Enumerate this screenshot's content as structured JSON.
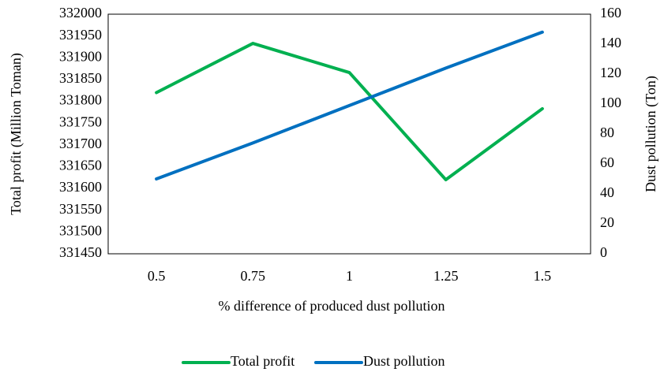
{
  "chart_data": {
    "type": "line",
    "x_label": "% difference of produced dust pollution",
    "y_label": "Total profit (Million Toman)",
    "y2_label": "Dust pollution (Ton)",
    "categories": [
      "0.5",
      "0.75",
      "1",
      "1.25",
      "1.5"
    ],
    "series": [
      {
        "name": "Total profit",
        "color": "#00b050",
        "values": [
          331820,
          331933,
          331866,
          331620,
          331783
        ]
      },
      {
        "name": "Dust pollution",
        "color": "#0070c0",
        "axis": "y2",
        "values": [
          50,
          74,
          99,
          124,
          148
        ]
      }
    ],
    "ylim": [
      331450,
      332000
    ],
    "yticks": [
      331450,
      331500,
      331550,
      331600,
      331650,
      331700,
      331750,
      331800,
      331850,
      331900,
      331950,
      332000
    ],
    "y2lim": [
      0,
      160
    ],
    "y2ticks": [
      0,
      20,
      40,
      60,
      80,
      100,
      120,
      140,
      160
    ],
    "legend": "bottom"
  }
}
